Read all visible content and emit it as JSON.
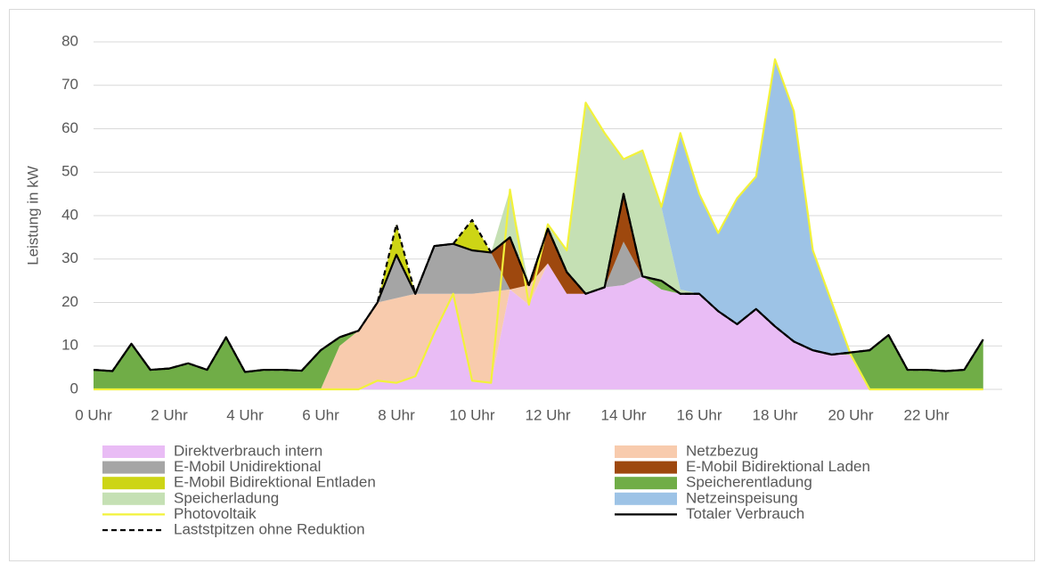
{
  "chart_data": {
    "type": "area",
    "y_label": "Leistung in kW",
    "categories": [
      "0 Uhr",
      null,
      null,
      null,
      "2 Uhr",
      null,
      null,
      null,
      "4 Uhr",
      null,
      null,
      null,
      "6 Uhr",
      null,
      null,
      null,
      "8 Uhr",
      null,
      null,
      null,
      "10 Uhr",
      null,
      null,
      null,
      "12 Uhr",
      null,
      null,
      null,
      "14 Uhr",
      null,
      null,
      null,
      "16 Uhr",
      null,
      null,
      null,
      "18 Uhr",
      null,
      null,
      null,
      "20 Uhr",
      null,
      null,
      null,
      "22 Uhr",
      null,
      null,
      null
    ],
    "ylim": [
      0,
      80
    ],
    "yticks": [
      0,
      10,
      20,
      30,
      40,
      50,
      60,
      70,
      80
    ],
    "grid": true,
    "series": [
      {
        "name": "Direktverbrauch intern",
        "color": "#e9bcf5",
        "values": [
          0,
          0,
          0,
          0,
          0,
          0,
          0,
          0,
          0,
          0,
          0,
          0,
          0,
          0,
          0,
          2,
          1.5,
          3,
          13,
          22,
          2,
          1.5,
          23,
          19.5,
          29,
          22,
          22,
          23.5,
          24,
          26,
          23,
          22,
          22,
          18,
          15,
          18.5,
          14.5,
          11,
          9,
          8,
          8,
          0,
          0,
          0,
          0,
          0,
          0,
          0
        ]
      },
      {
        "name": "Netzbezug",
        "color": "#f8cbad",
        "values": [
          0,
          0,
          0,
          0,
          0,
          0,
          0,
          0,
          0,
          0,
          0,
          0,
          0,
          10,
          13.5,
          18,
          19.5,
          19,
          9,
          0,
          20,
          21,
          0,
          4.5,
          0,
          0,
          0,
          0,
          0,
          0,
          0,
          0,
          0,
          0,
          0,
          0,
          0,
          0,
          0,
          0,
          0,
          0,
          0,
          0,
          0,
          0,
          0,
          0
        ]
      },
      {
        "name": "E-Mobil Unidirektional",
        "color": "#a5a5a5",
        "values": [
          0,
          0,
          0,
          0,
          0,
          0,
          0,
          0,
          0,
          0,
          0,
          0,
          0,
          0,
          0,
          0,
          10,
          0,
          11,
          11.5,
          10,
          9,
          0,
          0,
          0,
          0,
          0,
          0,
          10,
          0,
          0,
          0,
          0,
          0,
          0,
          0,
          0,
          0,
          0,
          0,
          0,
          0,
          0,
          0,
          0,
          0,
          0,
          0
        ]
      },
      {
        "name": "E-Mobil Bidirektional Laden",
        "color": "#9e480e",
        "values": [
          0,
          0,
          0,
          0,
          0,
          0,
          0,
          0,
          0,
          0,
          0,
          0,
          0,
          0,
          0,
          0,
          0,
          0,
          0,
          0,
          0,
          0,
          12,
          0,
          8,
          5,
          0,
          0,
          11,
          0,
          0,
          0,
          0,
          0,
          0,
          0,
          0,
          0,
          0,
          0,
          0,
          0,
          0,
          0,
          0,
          0,
          0,
          0
        ]
      },
      {
        "name": "E-Mobil Bidirektional Entladen",
        "color": "#cdd515",
        "values": [
          0,
          0,
          0,
          0,
          0,
          0,
          0,
          0,
          0,
          0,
          0,
          0,
          0,
          0,
          0,
          0,
          7,
          0,
          0,
          0,
          7,
          0,
          0,
          0,
          0,
          0,
          0,
          0,
          0,
          0,
          0,
          0,
          0,
          0,
          0,
          0,
          0,
          0,
          0,
          0,
          0,
          0,
          0,
          0,
          0,
          0,
          0,
          0
        ]
      },
      {
        "name": "Speicherentladung",
        "color": "#70ad47",
        "values": [
          4.5,
          4.2,
          10.5,
          4.5,
          4.8,
          6,
          4.5,
          12,
          4,
          4.5,
          4.5,
          4.3,
          9,
          2,
          0,
          0,
          0,
          0,
          0,
          0,
          0,
          0,
          0,
          0,
          0,
          0,
          0,
          0,
          0,
          0,
          2,
          0,
          0,
          0,
          0,
          0,
          0,
          0,
          0,
          0,
          0.5,
          9,
          12.5,
          4.5,
          4.5,
          4.2,
          4.5,
          11.5
        ]
      },
      {
        "name": "Speicherladung",
        "color": "#c5e0b4",
        "values": [
          0,
          0,
          0,
          0,
          0,
          0,
          0,
          0,
          0,
          0,
          0,
          0,
          0,
          0,
          0,
          0,
          0,
          0,
          0,
          0,
          0,
          0,
          11,
          0,
          1,
          5,
          44,
          35.5,
          8,
          29,
          17,
          1,
          0,
          0,
          0,
          0,
          0,
          0,
          0,
          0,
          0,
          0,
          0,
          0,
          0,
          0,
          0,
          0
        ]
      },
      {
        "name": "Netzeinspeisung",
        "color": "#9dc3e6",
        "values": [
          0,
          0,
          0,
          0,
          0,
          0,
          0,
          0,
          0,
          0,
          0,
          0,
          0,
          0,
          0,
          0,
          0,
          0,
          0,
          0,
          0,
          0,
          0,
          0,
          0,
          0,
          0,
          0,
          0,
          0,
          0,
          36,
          23,
          18,
          29,
          30.5,
          61.5,
          53,
          23,
          12,
          0,
          0,
          0,
          0,
          0,
          0,
          0,
          0
        ]
      }
    ],
    "lines": [
      {
        "name": "Photovoltaik",
        "color": "#f2f23a",
        "values": [
          0,
          0,
          0,
          0,
          0,
          0,
          0,
          0,
          0,
          0,
          0,
          0,
          0,
          0,
          0,
          2,
          1.5,
          3,
          13,
          22,
          2,
          1.5,
          46,
          19.5,
          38,
          32,
          66,
          59,
          53,
          55,
          42,
          59,
          45,
          36,
          44,
          49,
          76,
          64,
          32,
          20,
          8,
          0,
          0,
          0,
          0,
          0,
          0,
          0
        ]
      },
      {
        "name": "Totaler Verbrauch",
        "color": "#000000",
        "values": [
          4.5,
          4.2,
          10.5,
          4.5,
          4.8,
          6,
          4.5,
          12,
          4,
          4.5,
          4.5,
          4.3,
          9,
          12,
          13.5,
          20,
          31,
          22,
          33,
          33.5,
          32,
          31.5,
          35,
          24,
          37,
          27,
          22,
          23.5,
          45,
          26,
          25,
          22,
          22,
          18,
          15,
          18.5,
          14.5,
          11,
          9,
          8,
          8.5,
          9,
          12.5,
          4.5,
          4.5,
          4.2,
          4.5,
          11.5
        ]
      },
      {
        "name": "Laststpitzen ohne Reduktion",
        "color": "#000000",
        "dashed": true,
        "values": [
          4.5,
          4.2,
          10.5,
          4.5,
          4.8,
          6,
          4.5,
          12,
          4,
          4.5,
          4.5,
          4.3,
          9,
          12,
          13.5,
          20,
          38,
          22,
          33,
          33.5,
          39,
          31.5,
          35,
          24,
          37,
          27,
          22,
          23.5,
          45,
          26,
          25,
          22,
          22,
          18,
          15,
          18.5,
          14.5,
          11,
          9,
          8,
          8.5,
          9,
          12.5,
          4.5,
          4.5,
          4.2,
          4.5,
          11.5
        ]
      }
    ]
  }
}
